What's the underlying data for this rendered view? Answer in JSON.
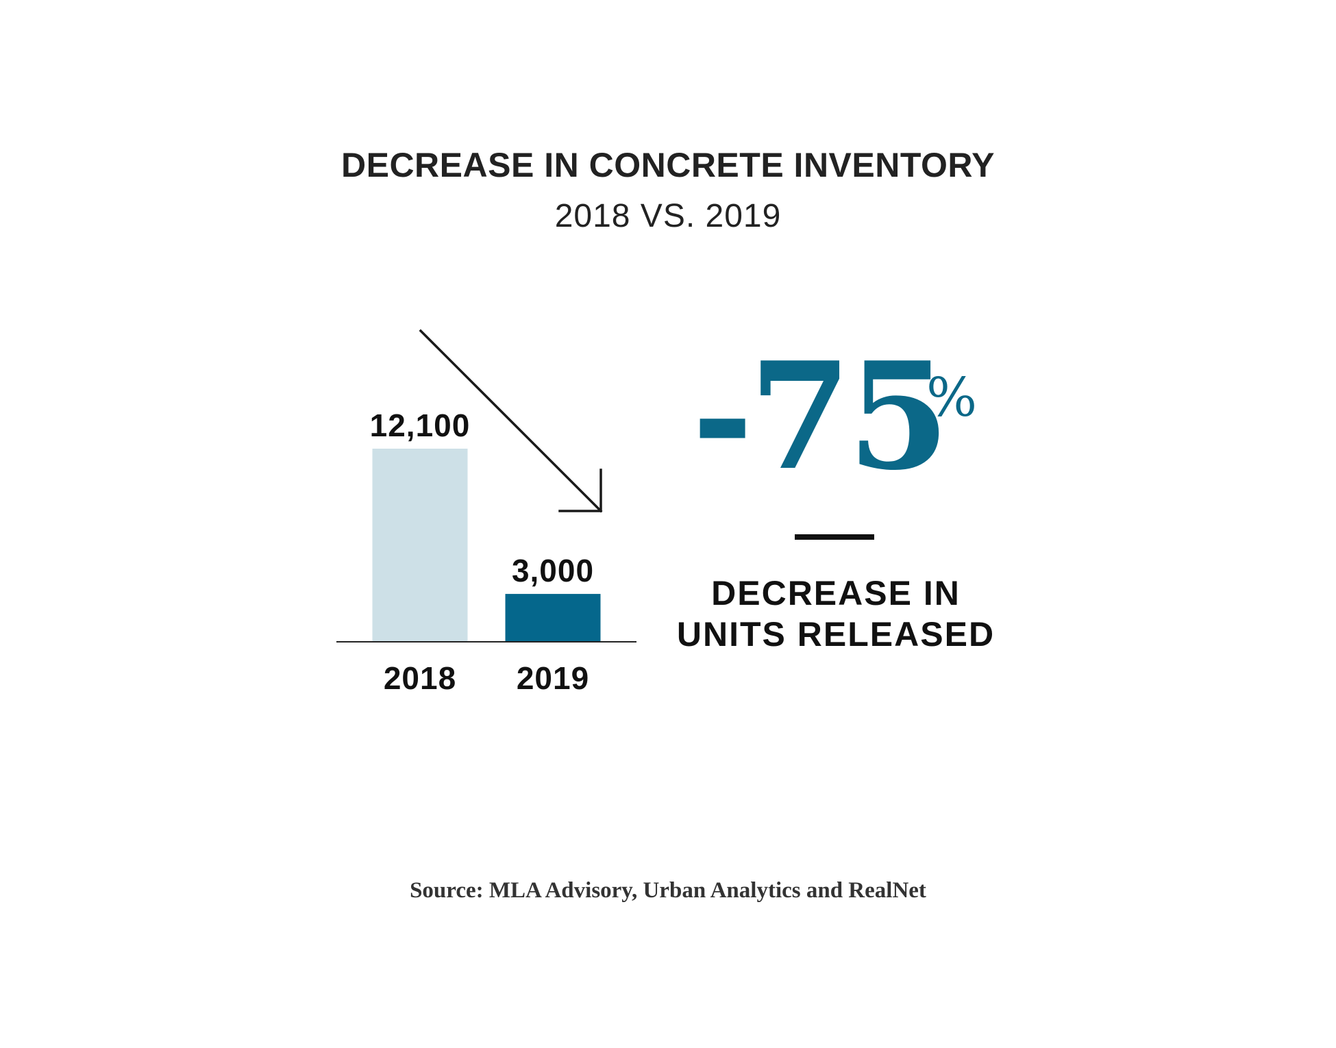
{
  "chart_data": {
    "type": "bar",
    "title": "DECREASE IN CONCRETE INVENTORY",
    "subtitle": "2018 VS. 2019",
    "categories": [
      "2018",
      "2019"
    ],
    "values": [
      12100,
      3000
    ],
    "value_labels": [
      "12,100",
      "3,000"
    ],
    "colors": [
      "#cde0e7",
      "#05678c"
    ],
    "ylim": [
      0,
      12100
    ],
    "xlabel": "",
    "ylabel": "",
    "grid": false,
    "annotation": {
      "value": "-75",
      "unit": "%",
      "caption_line1": "DECREASE IN",
      "caption_line2": "UNITS RELEASED",
      "color": "#0b6888"
    }
  },
  "source": "Source: MLA Advisory, Urban Analytics and RealNet"
}
